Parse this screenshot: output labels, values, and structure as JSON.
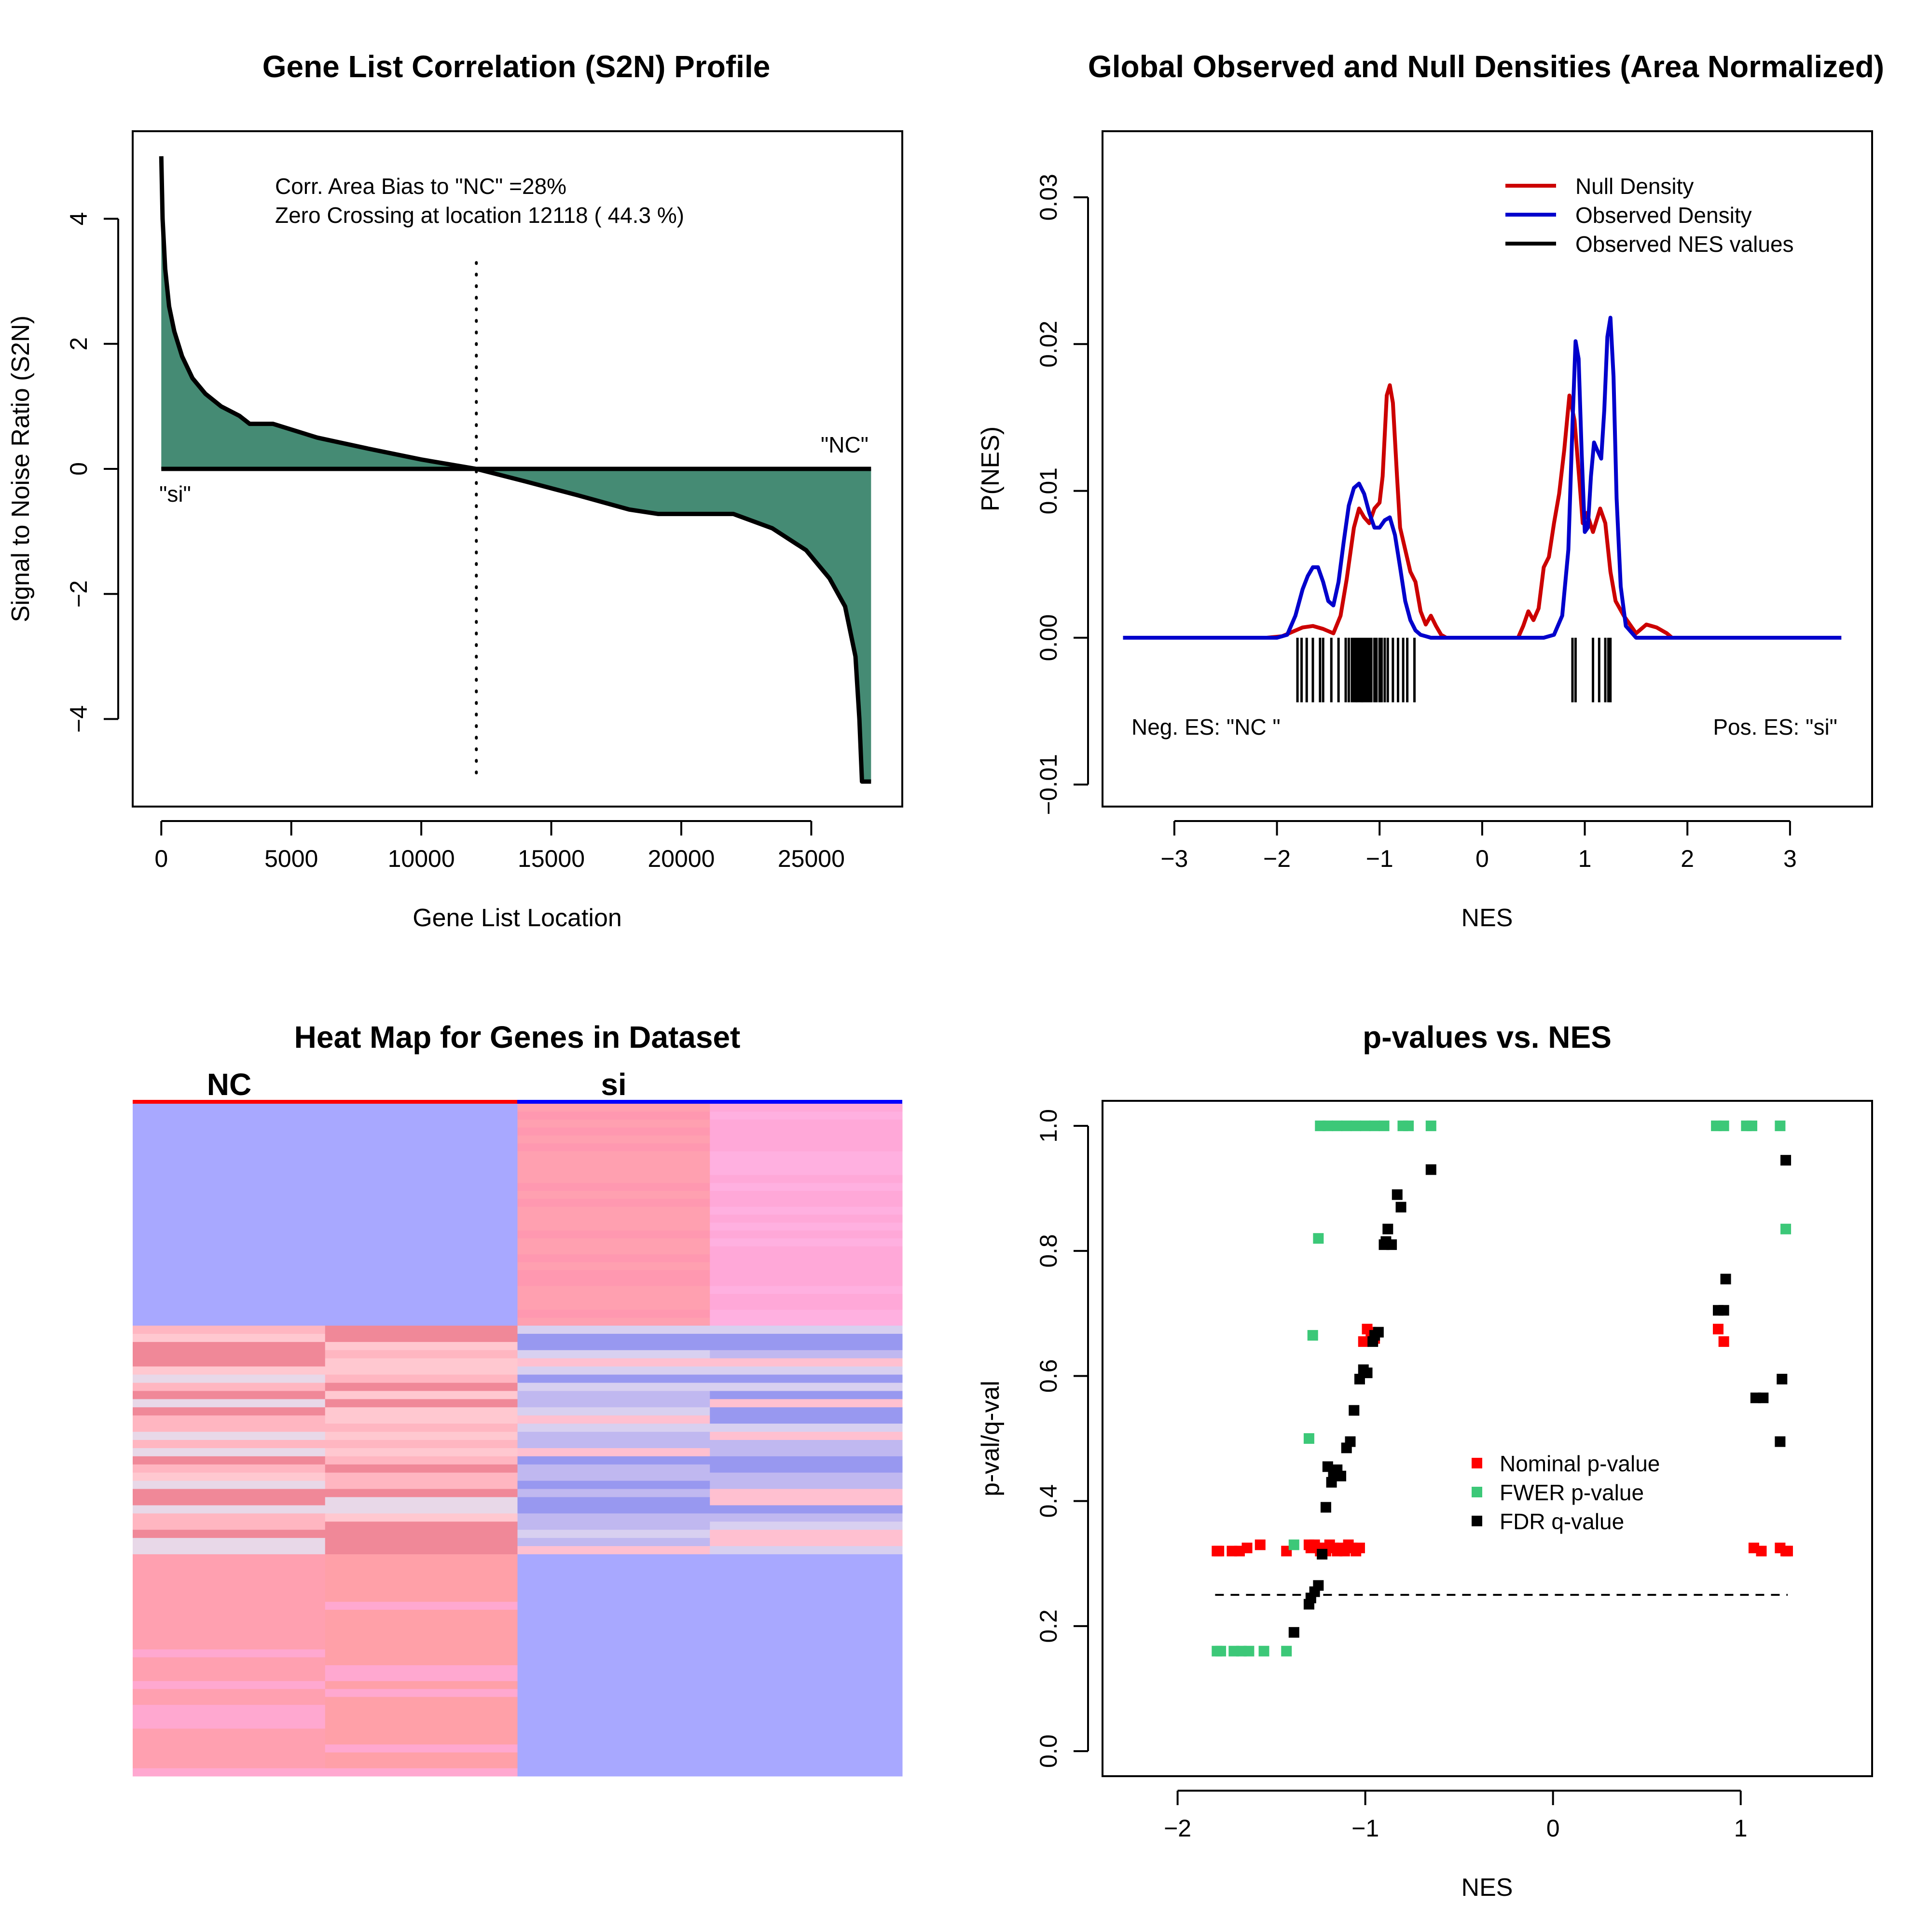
{
  "chart_data": [
    {
      "type": "area",
      "title": "Gene List Correlation (S2N) Profile",
      "xlabel": "Gene List Location",
      "ylabel": "Signal to Noise Ratio (S2N)",
      "xlim": [
        -1100,
        28500
      ],
      "ylim": [
        -5.4,
        5.4
      ],
      "xticks": [
        0,
        5000,
        10000,
        15000,
        20000,
        25000
      ],
      "yticks": [
        -4,
        -2,
        0,
        2,
        4
      ],
      "fill_color": "#458B74",
      "annotations": [
        "Corr. Area Bias to \"NC\" =28%",
        "Zero Crossing at location  12118  ( 44.3  %)"
      ],
      "zero_crossing": 12118,
      "label_top_right": "\"NC\"",
      "label_bottom_left": "\"si\"",
      "x": [
        0,
        50,
        150,
        300,
        500,
        800,
        1200,
        1700,
        2300,
        3000,
        3400,
        4300,
        6000,
        8000,
        10000,
        12118,
        14000,
        16000,
        18000,
        19100,
        22000,
        23500,
        24800,
        25700,
        26300,
        26700,
        26850,
        26950,
        27300
      ],
      "y": [
        5.0,
        4.0,
        3.2,
        2.6,
        2.2,
        1.8,
        1.45,
        1.2,
        1.0,
        0.85,
        0.72,
        0.72,
        0.5,
        0.32,
        0.15,
        0.0,
        -0.2,
        -0.42,
        -0.65,
        -0.72,
        -0.72,
        -0.95,
        -1.3,
        -1.75,
        -2.2,
        -3.0,
        -4.0,
        -5.0,
        -5.0
      ]
    },
    {
      "type": "line",
      "title": "Global Observed and Null Densities (Area Normalized)",
      "xlabel": "NES",
      "ylabel": "P(NES)",
      "xlim": [
        -3.7,
        3.8
      ],
      "ylim": [
        -0.0115,
        0.0345
      ],
      "xticks": [
        -3,
        -2,
        -1,
        0,
        1,
        2,
        3
      ],
      "yticks": [
        -0.01,
        0.0,
        0.01,
        0.02,
        0.03
      ],
      "ytick_labels": [
        "−0.01",
        "0.00",
        "0.01",
        "0.02",
        "0.03"
      ],
      "legend_position": "top-right",
      "legend": [
        "Null Density",
        "Observed Density",
        "Observed NES values"
      ],
      "colors": {
        "null": "#CC0000",
        "observed": "#0000CC",
        "rug": "#000000"
      },
      "annotations": [
        "Neg. ES: \"NC \"",
        "Pos. ES: \"si\""
      ],
      "series": [
        {
          "name": "Null Density",
          "x": [
            -3.5,
            -2.1,
            -1.95,
            -1.85,
            -1.75,
            -1.65,
            -1.55,
            -1.45,
            -1.38,
            -1.32,
            -1.25,
            -1.2,
            -1.15,
            -1.1,
            -1.05,
            -1.0,
            -0.97,
            -0.93,
            -0.9,
            -0.87,
            -0.83,
            -0.8,
            -0.75,
            -0.7,
            -0.65,
            -0.6,
            -0.55,
            -0.5,
            -0.45,
            -0.4,
            -0.35,
            -0.3,
            0.35,
            0.4,
            0.45,
            0.5,
            0.55,
            0.6,
            0.65,
            0.7,
            0.75,
            0.8,
            0.85,
            0.9,
            0.95,
            0.98,
            1.02,
            1.08,
            1.15,
            1.2,
            1.25,
            1.3,
            1.38,
            1.45,
            1.5,
            1.55,
            1.6,
            1.7,
            1.8,
            1.85,
            3.5
          ],
          "y": [
            0,
            0,
            0.0001,
            0.0004,
            0.0007,
            0.0008,
            0.0006,
            0.0003,
            0.0015,
            0.004,
            0.0075,
            0.0088,
            0.0082,
            0.0078,
            0.0088,
            0.0092,
            0.011,
            0.0165,
            0.0172,
            0.016,
            0.011,
            0.0075,
            0.006,
            0.0045,
            0.0038,
            0.0018,
            0.0009,
            0.0015,
            0.0008,
            0.0002,
            0.0,
            0.0,
            0.0,
            0.0008,
            0.0018,
            0.0012,
            0.002,
            0.0048,
            0.0055,
            0.0078,
            0.0098,
            0.0128,
            0.0165,
            0.0148,
            0.0105,
            0.0078,
            0.0085,
            0.0072,
            0.0088,
            0.0078,
            0.0045,
            0.0025,
            0.0015,
            0.0008,
            0.0003,
            0.0006,
            0.0009,
            0.0007,
            0.0003,
            0.0,
            0.0
          ]
        },
        {
          "name": "Observed Density",
          "x": [
            -3.5,
            -2.0,
            -1.9,
            -1.82,
            -1.75,
            -1.7,
            -1.65,
            -1.6,
            -1.55,
            -1.5,
            -1.45,
            -1.4,
            -1.35,
            -1.3,
            -1.25,
            -1.2,
            -1.15,
            -1.1,
            -1.05,
            -1.0,
            -0.95,
            -0.9,
            -0.85,
            -0.8,
            -0.75,
            -0.7,
            -0.65,
            -0.6,
            -0.55,
            -0.5,
            -0.45,
            0.6,
            0.7,
            0.78,
            0.84,
            0.88,
            0.91,
            0.94,
            0.97,
            1.0,
            1.03,
            1.06,
            1.09,
            1.12,
            1.16,
            1.19,
            1.22,
            1.25,
            1.28,
            1.31,
            1.35,
            1.4,
            1.5,
            3.5
          ],
          "y": [
            0,
            0,
            0.0002,
            0.0015,
            0.0033,
            0.0042,
            0.0048,
            0.0048,
            0.0038,
            0.0025,
            0.0022,
            0.0038,
            0.0065,
            0.009,
            0.0102,
            0.0105,
            0.0098,
            0.0085,
            0.0075,
            0.0075,
            0.008,
            0.0082,
            0.007,
            0.0048,
            0.0025,
            0.0012,
            0.0005,
            0.0002,
            0.0001,
            0.0,
            0.0,
            0.0,
            0.0002,
            0.0015,
            0.006,
            0.0145,
            0.0202,
            0.019,
            0.0125,
            0.0072,
            0.0075,
            0.011,
            0.0133,
            0.0128,
            0.0122,
            0.0155,
            0.0205,
            0.0218,
            0.0178,
            0.0095,
            0.0035,
            0.0008,
            0.0,
            0.0
          ]
        }
      ],
      "rug": [
        -1.8,
        -1.76,
        -1.71,
        -1.65,
        -1.58,
        -1.55,
        -1.47,
        -1.4,
        -1.33,
        -1.3,
        -1.27,
        -1.25,
        -1.23,
        -1.22,
        -1.2,
        -1.18,
        -1.17,
        -1.16,
        -1.14,
        -1.12,
        -1.1,
        -1.08,
        -1.05,
        -1.03,
        -1.0,
        -0.98,
        -0.95,
        -0.92,
        -0.87,
        -0.82,
        -0.77,
        -0.73,
        -0.66,
        0.88,
        0.91,
        1.08,
        1.14,
        1.2,
        1.23,
        1.25
      ]
    },
    {
      "type": "heatmap",
      "title": "Heat Map for Genes in Dataset",
      "column_groups": [
        "NC",
        "si"
      ],
      "group_colors": [
        "#FF0000",
        "#0000FF"
      ],
      "columns": 4,
      "blocks": [
        {
          "rows": "top",
          "fraction": 0.33,
          "colors": [
            "#A8A8FF",
            "#A8A8FF",
            "#FFA0B0",
            "#FFA8D8"
          ]
        },
        {
          "rows": "middle",
          "fraction": 0.34,
          "colors": [
            "#FFB6C1",
            "#E8D8E8",
            "#C0B8F0",
            "#B8B0F0"
          ]
        },
        {
          "rows": "bottom",
          "fraction": 0.33,
          "colors": [
            "#FFA0B0",
            "#FFA0A8",
            "#A8A8FF",
            "#A8A8FF"
          ]
        }
      ]
    },
    {
      "type": "scatter",
      "title": "p-values vs. NES",
      "xlabel": "NES",
      "ylabel": "p-val/q-val",
      "xlim": [
        -2.4,
        1.7
      ],
      "ylim": [
        -0.04,
        1.04
      ],
      "xticks": [
        -2,
        -1,
        0,
        1
      ],
      "yticks": [
        0.0,
        0.2,
        0.4,
        0.6,
        0.8,
        1.0
      ],
      "ytick_labels": [
        "0.0",
        "0.2",
        "0.4",
        "0.6",
        "0.8",
        "1.0"
      ],
      "reference_line_y": 0.25,
      "reference_line_x": [
        -1.8,
        1.25
      ],
      "legend_position": "center-right",
      "legend": [
        "Nominal p-value",
        "FWER p-value",
        "FDR q-value"
      ],
      "colors": {
        "nominal": "#FF0000",
        "fwer": "#3CC878",
        "fdr": "#000000"
      },
      "series": [
        {
          "name": "Nominal p-value",
          "x": [
            -1.79,
            -1.78,
            -1.71,
            -1.67,
            -1.63,
            -1.56,
            -1.42,
            -1.3,
            -1.29,
            -1.27,
            -1.25,
            -1.24,
            -1.22,
            -1.21,
            -1.19,
            -1.17,
            -1.15,
            -1.13,
            -1.11,
            -1.09,
            -1.07,
            -1.05,
            -1.03,
            -0.99,
            -1.01,
            -0.95,
            -0.97,
            0.88,
            0.91,
            1.07,
            1.11,
            1.21,
            1.24,
            1.25
          ],
          "y": [
            0.32,
            0.32,
            0.32,
            0.32,
            0.325,
            0.33,
            0.32,
            0.33,
            0.325,
            0.33,
            0.325,
            0.32,
            0.325,
            0.32,
            0.33,
            0.325,
            0.32,
            0.325,
            0.32,
            0.33,
            0.325,
            0.32,
            0.325,
            0.675,
            0.655,
            0.66,
            0.67,
            0.675,
            0.655,
            0.325,
            0.32,
            0.325,
            0.32,
            0.32
          ]
        },
        {
          "name": "FWER p-value",
          "x": [
            -1.79,
            -1.77,
            -1.7,
            -1.66,
            -1.62,
            -1.54,
            -1.42,
            -1.38,
            -1.3,
            -1.28,
            -1.25,
            -1.24,
            -1.2,
            -1.15,
            -1.1,
            -1.05,
            -1.0,
            -0.95,
            -0.9,
            -0.8,
            -0.77,
            -0.65,
            0.87,
            0.91,
            1.03,
            1.06,
            1.21,
            1.24
          ],
          "y": [
            0.16,
            0.16,
            0.16,
            0.16,
            0.16,
            0.16,
            0.16,
            0.33,
            0.5,
            0.665,
            0.82,
            1.0,
            1.0,
            1.0,
            1.0,
            1.0,
            1.0,
            1.0,
            1.0,
            1.0,
            1.0,
            1.0,
            1.0,
            1.0,
            1.0,
            1.0,
            1.0,
            0.835
          ]
        },
        {
          "name": "FDR q-value",
          "x": [
            -1.38,
            -1.3,
            -1.29,
            -1.27,
            -1.25,
            -1.23,
            -1.21,
            -1.2,
            -1.18,
            -1.17,
            -1.15,
            -1.13,
            -1.1,
            -1.08,
            -1.06,
            -1.03,
            -1.01,
            -0.99,
            -0.96,
            -0.95,
            -0.93,
            -0.9,
            -0.89,
            -0.88,
            -0.86,
            -0.83,
            -0.81,
            -0.65,
            0.88,
            0.91,
            0.92,
            1.08,
            1.12,
            1.21,
            1.22,
            1.24
          ],
          "y": [
            0.19,
            0.235,
            0.245,
            0.255,
            0.265,
            0.315,
            0.39,
            0.455,
            0.43,
            0.445,
            0.45,
            0.44,
            0.485,
            0.495,
            0.545,
            0.595,
            0.61,
            0.605,
            0.655,
            0.665,
            0.67,
            0.81,
            0.815,
            0.835,
            0.81,
            0.89,
            0.87,
            0.93,
            0.705,
            0.705,
            0.755,
            0.565,
            0.565,
            0.495,
            0.595,
            0.945
          ]
        }
      ]
    }
  ]
}
